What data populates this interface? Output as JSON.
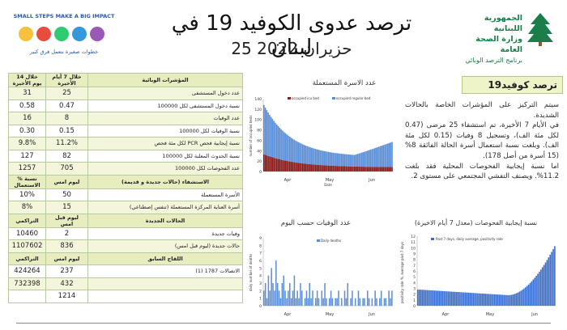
{
  "header": {
    "title": "ترصد عدوى الكوفيد 19 في لبنان",
    "date": "25 حزيران 2022",
    "ministry_line1": "الجمهورية اللبنانية",
    "ministry_line2": "وزارة الصحة العامة",
    "ministry_line3": "برنامج الترصد الوبائي",
    "campaign_top": "SMALL STEPS MAKE A BIG IMPACT",
    "campaign_bottom": "خطوات صغيرة بتعمل فرق كبير",
    "colors": {
      "green": "#1a7d4a",
      "band": "#e8edc0"
    }
  },
  "stats_table": {
    "headers": [
      "المؤشرات الوبائية",
      "خلال 7 أيام الأخيرة",
      "خلال 14 يوم الأخيرة"
    ],
    "rows": [
      {
        "label": "عدد دخول المستشفى",
        "v7": "25",
        "v14": "31"
      },
      {
        "label": "نسبة دخول المستشفى لكل 100000",
        "v7": "0.47",
        "v14": "0.58"
      },
      {
        "label": "عدد الوفيات",
        "v7": "8",
        "v14": "16"
      },
      {
        "label": "نسبة الوفيات لكل 100000",
        "v7": "0.15",
        "v14": "0.30"
      },
      {
        "label": "نسبة إيجابية فحص PCR لكل مئة فحص",
        "v7": "11.2%",
        "v14": "9.8%"
      },
      {
        "label": "نسبة الحدوث المعلنة لكل 100000",
        "v7": "82",
        "v14": "127"
      },
      {
        "label": "عدد الفحوصات لكل 100000",
        "v7": "705",
        "v14": "1257"
      }
    ],
    "occupancy_headers": [
      "الاستشفاء (حالات جديدة و قديمة)",
      "ليوم امس",
      "% نسبة الاستعمال"
    ],
    "occupancy_rows": [
      {
        "label": "الأسرة المستعملة",
        "v1": "50",
        "v2": "10%"
      },
      {
        "label": "أسرة العناية المركزة المستعملة (تنفس إصطناعي)",
        "v1": "15",
        "v2": "8%"
      }
    ],
    "cases_headers": [
      "الحالات الجديدة",
      "ليوم قبل امس",
      "التراكمي"
    ],
    "cases_rows": [
      {
        "label": "وفيات جديدة",
        "v1": "2",
        "v2": "10460"
      },
      {
        "label": "حالات جديدة (ليوم قبل امس)",
        "v1": "836",
        "v2": "1107602"
      }
    ],
    "vaccine_headers": [
      "اللقاح السابق",
      "ليوم امس",
      "التراكمي"
    ],
    "vaccine_rows": [
      {
        "label": "الاتصالات 1787 (1)",
        "v1": "237",
        "v2": "424264"
      },
      {
        "label": "",
        "v1": "432",
        "v2": "732398"
      },
      {
        "label": "",
        "v1": "1214",
        "v2": ""
      }
    ]
  },
  "chart_beds": {
    "title": "عدد الاسرة المستعملة",
    "legend": [
      "occupied icu bed",
      "occupied regular bed"
    ],
    "ylabel": "number of occupied beds",
    "yticks": [
      "0",
      "20",
      "40",
      "60",
      "80",
      "100",
      "120",
      "140"
    ],
    "months": [
      "Apr",
      "May",
      "Jun"
    ],
    "xlabel": "Date",
    "colors": {
      "icu": "#8b1a1a",
      "regular": "#5b8ed6"
    }
  },
  "chart_deaths": {
    "title": "عدد الوفيات حسب اليوم",
    "legend": "Daily deaths",
    "ylabel": "daily number of deaths",
    "yticks": [
      "0",
      "1",
      "2",
      "3",
      "4",
      "5",
      "6",
      "7",
      "8",
      "9"
    ],
    "months": [
      "Apr",
      "May",
      "Jun"
    ],
    "color": "#5b8ed6"
  },
  "chart_positivity": {
    "title": "نسبة إيجابية الفحوصات (معدل 7 أيام الاخيرة)",
    "legend": "Past 7 days, daily average, positivity rate",
    "ylabel": "positivity rate %, average past 7 days",
    "yticks": [
      "0",
      "1",
      "2",
      "3",
      "4",
      "5",
      "6",
      "7",
      "8",
      "9",
      "10",
      "11",
      "12"
    ],
    "months": [
      "Apr",
      "May",
      "Jun"
    ],
    "color": "#3a6fd0"
  },
  "covid_panel": {
    "title": "ترصد كوفيد19",
    "paragraph1": "سيتم التركيز على المؤشرات الخاصة بالحالات الشديدة.",
    "paragraph2": "في الأيام 7 الأخيرة، تم استشفاء 25 مرضى (0.47 لكل مئة الف)، وتسجيل 8 وفيات (0.15 لكل مئة الف). وبلغت نسبة استعمال أسرة الحالة الفائقة 8% (15 أسرة من أصل 178).",
    "paragraph3": "اما نسبة إيجابية الفحوصات المحلية فقد بلغت 11.2%. ويصنف التفشي المجتمعي على مستوى 2."
  }
}
